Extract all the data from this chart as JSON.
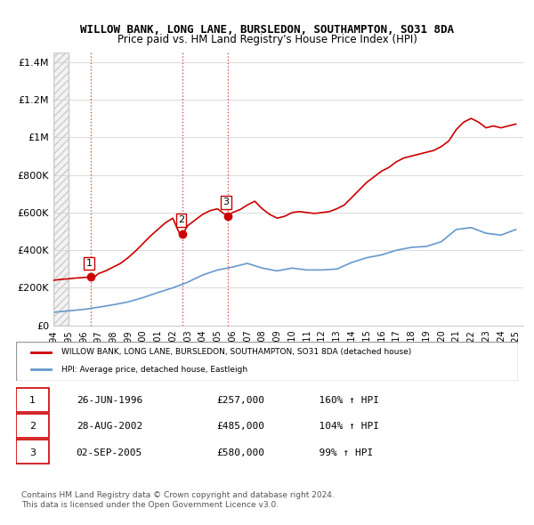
{
  "title": "WILLOW BANK, LONG LANE, BURSLEDON, SOUTHAMPTON, SO31 8DA",
  "subtitle": "Price paid vs. HM Land Registry's House Price Index (HPI)",
  "legend_property": "WILLOW BANK, LONG LANE, BURSLEDON, SOUTHAMPTON, SO31 8DA (detached house)",
  "legend_hpi": "HPI: Average price, detached house, Eastleigh",
  "footer1": "Contains HM Land Registry data © Crown copyright and database right 2024.",
  "footer2": "This data is licensed under the Open Government Licence v3.0.",
  "sales": [
    {
      "num": 1,
      "date": "26-JUN-1996",
      "price": 257000,
      "hpi_pct": "160%",
      "year": 1996.49
    },
    {
      "num": 2,
      "date": "28-AUG-2002",
      "price": 485000,
      "hpi_pct": "104%",
      "year": 2002.66
    },
    {
      "num": 3,
      "date": "02-SEP-2005",
      "price": 580000,
      "hpi_pct": "99%",
      "year": 2005.67
    }
  ],
  "ylim": [
    0,
    1450000
  ],
  "xlim_start": 1994.0,
  "xlim_end": 2025.5,
  "property_color": "#cc0000",
  "hpi_color": "#6699cc",
  "sale_marker_color": "#cc0000",
  "hatch_color": "#cccccc",
  "grid_color": "#cccccc",
  "hpi_years": [
    1994,
    1995,
    1996,
    1997,
    1998,
    1999,
    2000,
    2001,
    2002,
    2003,
    2004,
    2005,
    2006,
    2007,
    2008,
    2009,
    2010,
    2011,
    2012,
    2013,
    2014,
    2015,
    2016,
    2017,
    2018,
    2019,
    2020,
    2021,
    2022,
    2023,
    2024,
    2025
  ],
  "hpi_values": [
    70000,
    78000,
    85000,
    97000,
    110000,
    125000,
    148000,
    175000,
    200000,
    230000,
    268000,
    295000,
    310000,
    330000,
    305000,
    290000,
    305000,
    295000,
    295000,
    300000,
    335000,
    360000,
    375000,
    400000,
    415000,
    420000,
    445000,
    510000,
    520000,
    490000,
    480000,
    510000
  ],
  "prop_years": [
    1994.0,
    1994.5,
    1995.0,
    1995.5,
    1996.0,
    1996.49,
    1996.8,
    1997.0,
    1997.5,
    1998.0,
    1998.5,
    1999.0,
    1999.5,
    2000.0,
    2000.5,
    2001.0,
    2001.5,
    2002.0,
    2002.5,
    2002.66,
    2003.0,
    2003.5,
    2004.0,
    2004.5,
    2005.0,
    2005.5,
    2005.67,
    2006.0,
    2006.5,
    2007.0,
    2007.5,
    2008.0,
    2008.5,
    2009.0,
    2009.5,
    2010.0,
    2010.5,
    2011.0,
    2011.5,
    2012.0,
    2012.5,
    2013.0,
    2013.5,
    2014.0,
    2014.5,
    2015.0,
    2015.5,
    2016.0,
    2016.5,
    2017.0,
    2017.5,
    2018.0,
    2018.5,
    2019.0,
    2019.5,
    2020.0,
    2020.5,
    2021.0,
    2021.5,
    2022.0,
    2022.5,
    2023.0,
    2023.5,
    2024.0,
    2024.5,
    2025.0
  ],
  "prop_values": [
    240000,
    245000,
    248000,
    252000,
    255000,
    257000,
    260000,
    275000,
    290000,
    310000,
    330000,
    360000,
    395000,
    435000,
    475000,
    510000,
    545000,
    570000,
    480000,
    485000,
    530000,
    560000,
    590000,
    610000,
    620000,
    590000,
    580000,
    600000,
    615000,
    640000,
    660000,
    620000,
    590000,
    570000,
    580000,
    600000,
    605000,
    600000,
    595000,
    600000,
    605000,
    620000,
    640000,
    680000,
    720000,
    760000,
    790000,
    820000,
    840000,
    870000,
    890000,
    900000,
    910000,
    920000,
    930000,
    950000,
    980000,
    1040000,
    1080000,
    1100000,
    1080000,
    1050000,
    1060000,
    1050000,
    1060000,
    1070000
  ]
}
